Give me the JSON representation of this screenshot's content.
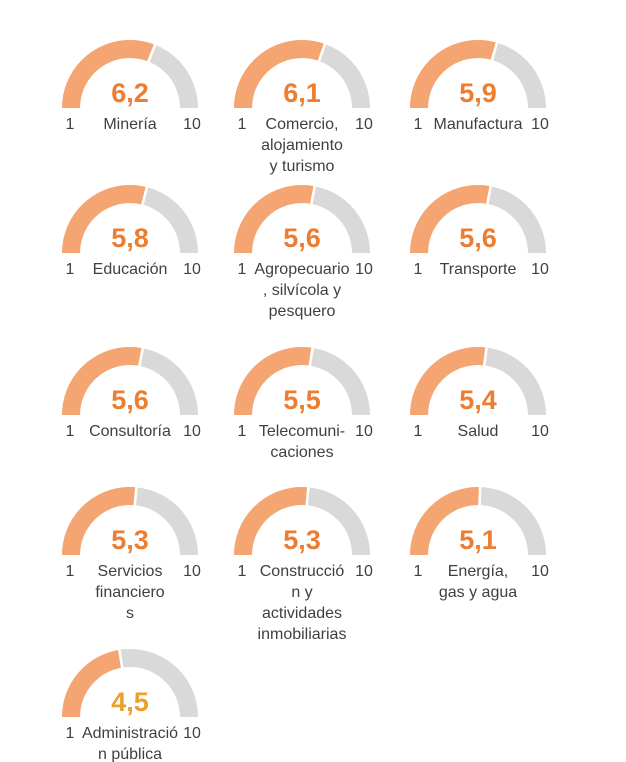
{
  "page": {
    "background": "#FFFFFF",
    "description_visible_text_only": true
  },
  "chart_data": {
    "type": "gauge",
    "layout": {
      "columns": 3,
      "rows": 5,
      "grid_order": "row-major",
      "legend": "none",
      "grid": "off"
    },
    "scale": {
      "min": 1,
      "max": 10,
      "min_label": "1",
      "max_label": "10",
      "fill_rule": "value / max over 180deg semicircle"
    },
    "colors": {
      "arc_fill": "#F5A571",
      "arc_track": "#D9D9D9",
      "segment_gap": "#FFFFFF",
      "value_default": "#ED7D31",
      "value_amber": "#EAA02C",
      "label_text": "#404040",
      "background": "#FFFFFF"
    },
    "gauges": [
      {
        "label": "Minería",
        "value": 6.2,
        "value_display": "6,2",
        "label_lines": "Minería"
      },
      {
        "label": "Comercio, alojamiento y turismo",
        "value": 6.1,
        "value_display": "6,1",
        "label_lines": "Comercio,\nalojamiento\ny turismo"
      },
      {
        "label": "Manufactura",
        "value": 5.9,
        "value_display": "5,9",
        "label_lines": "Manufactura"
      },
      {
        "label": "Educación",
        "value": 5.8,
        "value_display": "5,8",
        "label_lines": "Educación"
      },
      {
        "label": "Agropecuario, silvícola y pesquero",
        "value": 5.6,
        "value_display": "5,6",
        "label_lines": "Agropecuario\n, silvícola y\npesquero"
      },
      {
        "label": "Transporte",
        "value": 5.6,
        "value_display": "5,6",
        "label_lines": "Transporte"
      },
      {
        "label": "Consultoría",
        "value": 5.6,
        "value_display": "5,6",
        "label_lines": "Consultoría"
      },
      {
        "label": "Telecomunicaciones",
        "value": 5.5,
        "value_display": "5,5",
        "label_lines": "Telecomuni-\ncaciones"
      },
      {
        "label": "Salud",
        "value": 5.4,
        "value_display": "5,4",
        "label_lines": "Salud"
      },
      {
        "label": "Servicios financieros",
        "value": 5.3,
        "value_display": "5,3",
        "label_lines": "Servicios\nfinanciero\ns"
      },
      {
        "label": "Construcción y actividades inmobiliarias",
        "value": 5.3,
        "value_display": "5,3",
        "label_lines": "Construcció\nn y\nactividades\ninmobiliarias"
      },
      {
        "label": "Energía, gas y agua",
        "value": 5.1,
        "value_display": "5,1",
        "label_lines": "Energía,\ngas y agua"
      },
      {
        "label": "Administración pública",
        "value": 4.5,
        "value_display": "4,5",
        "label_lines": "Administració\nn pública",
        "value_color": "#EAA02C"
      }
    ]
  }
}
